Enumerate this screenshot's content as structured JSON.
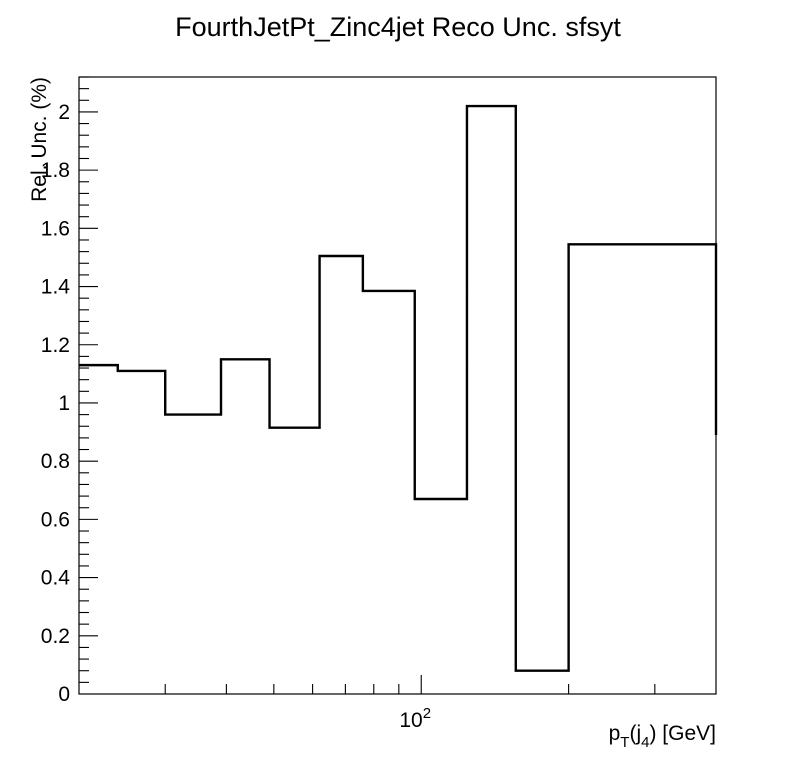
{
  "chart_data": {
    "type": "step",
    "title": "FourthJetPt_Zinc4jet Reco Unc. sfsyt",
    "xlabel": {
      "main": "p",
      "sub1": "T",
      "mid": "(j",
      "sub2": "4",
      "tail": ") [GeV]"
    },
    "ylabel": "Rel. Unc. (%)",
    "x_scale": "log",
    "xlim": [
      20,
      400
    ],
    "ylim": [
      0,
      2.12
    ],
    "y_ticks": [
      0,
      0.2,
      0.4,
      0.6,
      0.8,
      1,
      1.2,
      1.4,
      1.6,
      1.8,
      2
    ],
    "y_tick_labels": [
      "0",
      "0.2",
      "0.4",
      "0.6",
      "0.8",
      "1",
      "1.2",
      "1.4",
      "1.6",
      "1.8",
      "2"
    ],
    "x_tick_label": {
      "base": "10",
      "exp": "2",
      "value": 100
    },
    "bins": [
      {
        "low": 20,
        "high": 24,
        "value": 1.13
      },
      {
        "low": 24,
        "high": 30,
        "value": 1.11
      },
      {
        "low": 30,
        "high": 39,
        "value": 0.96
      },
      {
        "low": 39,
        "high": 49,
        "value": 1.15
      },
      {
        "low": 49,
        "high": 62,
        "value": 0.915
      },
      {
        "low": 62,
        "high": 76,
        "value": 1.505
      },
      {
        "low": 76,
        "high": 97,
        "value": 1.385
      },
      {
        "low": 97,
        "high": 124,
        "value": 0.67
      },
      {
        "low": 124,
        "high": 156,
        "value": 2.02
      },
      {
        "low": 156,
        "high": 200,
        "value": 0.08
      },
      {
        "low": 200,
        "high": 400,
        "value": 1.545
      },
      {
        "low": 400,
        "high": 400,
        "value": 0.89
      }
    ],
    "grid": false,
    "legend": "none"
  }
}
